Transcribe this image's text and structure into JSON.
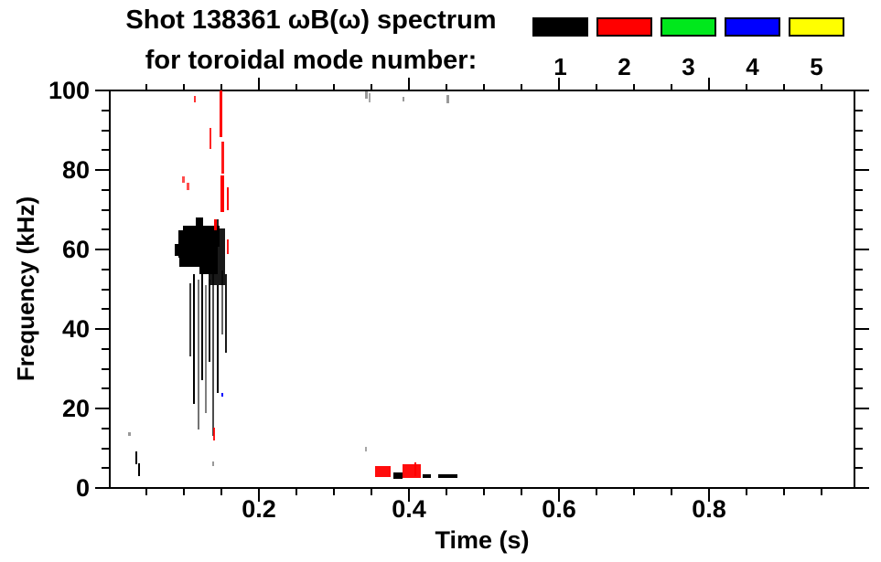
{
  "title": {
    "line1": "Shot 138361 ωB(ω) spectrum",
    "line2": "for toroidal mode number:"
  },
  "legend": {
    "items": [
      {
        "label": "1",
        "color": "#000000"
      },
      {
        "label": "2",
        "color": "#ff0000"
      },
      {
        "label": "3",
        "color": "#00e81c"
      },
      {
        "label": "4",
        "color": "#0000ff"
      },
      {
        "label": "5",
        "color": "#ffff00"
      }
    ]
  },
  "chart_data": {
    "type": "scatter",
    "title": "Shot 138361 ωB(ω) spectrum for toroidal mode number:",
    "xlabel": "Time (s)",
    "ylabel": "Frequency (kHz)",
    "xlim": [
      0.0,
      1.0
    ],
    "ylim": [
      0,
      100
    ],
    "x_major_ticks": [
      0.2,
      0.4,
      0.6,
      0.8
    ],
    "x_tick_labels": [
      "0.2",
      "0.4",
      "0.6",
      "0.8"
    ],
    "x_minor_step": 0.05,
    "y_major_ticks": [
      0,
      20,
      40,
      60,
      80,
      100
    ],
    "y_tick_labels": [
      "0",
      "20",
      "40",
      "60",
      "80",
      "100"
    ],
    "y_minor_step": 5,
    "grid": false,
    "legend_position": "top-right",
    "series": [
      {
        "name": "toroidal mode n=1",
        "color": "#000000",
        "description": "Dense mode activity blob t=0.09-0.16 s at 52-68 kHz with downward frequency striations to ~13 kHz; weak bursts near 97-100 kHz at t=0.34-0.45; low-frequency specks 2-10 kHz near t=0.04 and t=0.38-0.47.",
        "marks": [
          [
            0.093,
            64.8,
            0.138,
            57.9,
            1
          ],
          [
            0.099,
            66.0,
            0.148,
            60.7,
            1
          ],
          [
            0.094,
            62.5,
            0.123,
            55.6,
            1
          ],
          [
            0.121,
            64.1,
            0.145,
            53.8,
            1
          ],
          [
            0.133,
            65.3,
            0.155,
            51.0,
            0.9
          ],
          [
            0.088,
            61.5,
            0.095,
            58.5,
            1
          ],
          [
            0.116,
            68.0,
            0.126,
            64.5,
            1
          ],
          [
            0.14,
            67.5,
            0.147,
            63.0,
            0.85
          ],
          [
            0.107,
            51.5,
            0.1095,
            33.1,
            0.75
          ],
          [
            0.112,
            53.8,
            0.1145,
            21.1,
            1
          ],
          [
            0.118,
            52.4,
            0.1205,
            14.7,
            0.55
          ],
          [
            0.123,
            53.8,
            0.1255,
            27.1,
            1
          ],
          [
            0.128,
            51.0,
            0.1305,
            18.9,
            0.5
          ],
          [
            0.133,
            52.4,
            0.1355,
            31.7,
            0.9
          ],
          [
            0.138,
            53.8,
            0.1405,
            13.1,
            0.7
          ],
          [
            0.144,
            51.0,
            0.1465,
            23.9,
            1
          ],
          [
            0.15,
            54.7,
            0.1525,
            38.6,
            0.6
          ],
          [
            0.155,
            53.8,
            0.1575,
            34.0,
            0.9
          ],
          [
            0.379,
            3.9,
            0.391,
            2.3,
            1
          ],
          [
            0.418,
            3.4,
            0.429,
            2.5,
            1
          ],
          [
            0.439,
            3.4,
            0.465,
            2.5,
            1
          ],
          [
            0.0355,
            9.2,
            0.038,
            6.0,
            1
          ],
          [
            0.039,
            6.2,
            0.0415,
            3.0,
            1
          ],
          [
            0.341,
            99.8,
            0.345,
            97.9,
            0.4
          ],
          [
            0.346,
            99.3,
            0.349,
            97.0,
            0.35
          ],
          [
            0.391,
            98.4,
            0.394,
            97.2,
            0.4
          ],
          [
            0.45,
            98.9,
            0.453,
            96.8,
            0.4
          ],
          [
            0.026,
            14.0,
            0.029,
            13.1,
            0.4
          ],
          [
            0.138,
            6.7,
            0.14,
            5.5,
            0.4
          ],
          [
            0.341,
            10.3,
            0.344,
            9.2,
            0.35
          ]
        ]
      },
      {
        "name": "toroidal mode n=2",
        "color": "#ff0000",
        "description": "Vertical burst striations t=0.13-0.16 s spanning ~59-100 kHz above the n=1 blob; weak low-frequency activity 2-7 kHz near t=0.35-0.42.",
        "marks": [
          [
            0.1476,
            100.0,
            0.1513,
            88.3,
            1
          ],
          [
            0.15,
            87.1,
            0.153,
            79.1,
            0.9
          ],
          [
            0.1488,
            78.6,
            0.1537,
            69.4,
            1
          ],
          [
            0.134,
            90.6,
            0.137,
            85.3,
            0.85
          ],
          [
            0.157,
            75.6,
            0.1595,
            69.9,
            1
          ],
          [
            0.113,
            98.6,
            0.1155,
            97.0,
            0.8
          ],
          [
            0.0976,
            78.4,
            0.1013,
            76.8,
            0.7
          ],
          [
            0.104,
            76.8,
            0.1075,
            74.9,
            0.7
          ],
          [
            0.14,
            67.6,
            0.1435,
            64.8,
            1
          ],
          [
            0.157,
            62.5,
            0.16,
            58.9,
            0.9
          ],
          [
            0.139,
            15.2,
            0.1415,
            12.0,
            0.9
          ],
          [
            0.355,
            5.5,
            0.376,
            2.8,
            0.95
          ],
          [
            0.391,
            6.0,
            0.416,
            2.5,
            0.95
          ],
          [
            0.407,
            6.5,
            0.41,
            3.0,
            1
          ]
        ]
      },
      {
        "name": "toroidal mode n=3",
        "color": "#00e81c",
        "description": "No visible activity.",
        "marks": []
      },
      {
        "name": "toroidal mode n=4",
        "color": "#0000ff",
        "description": "Single faint point near t=0.15 s, 23 kHz.",
        "marks": [
          [
            0.15,
            23.9,
            0.152,
            23.0,
            1
          ]
        ]
      },
      {
        "name": "toroidal mode n=5",
        "color": "#ffff00",
        "description": "No visible activity.",
        "marks": []
      }
    ]
  }
}
